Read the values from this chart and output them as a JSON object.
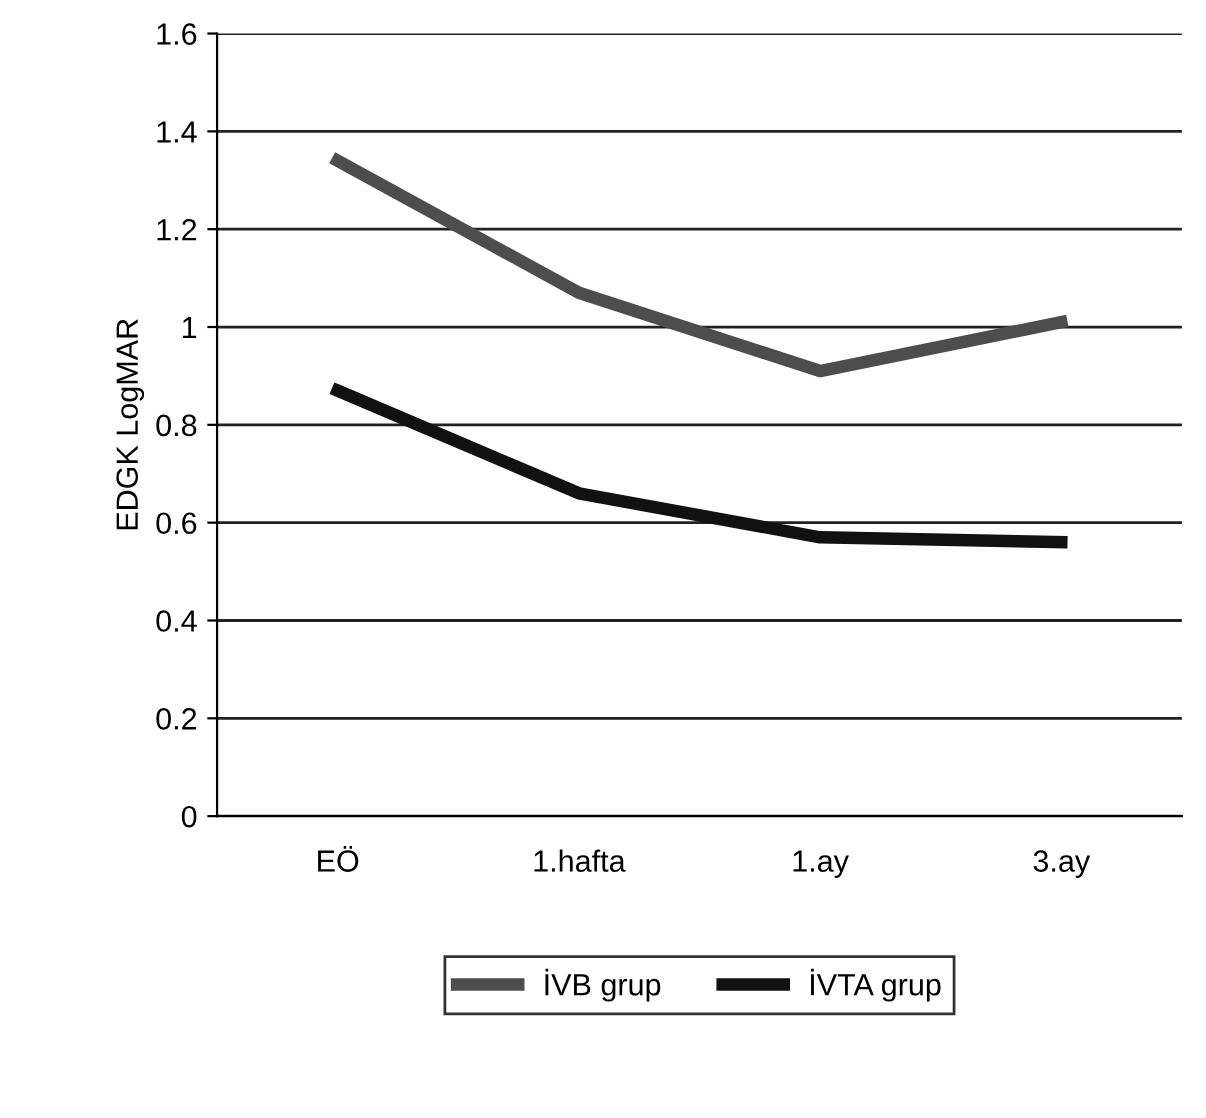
{
  "chart_data": {
    "type": "line",
    "ylabel": "EDGK LogMAR",
    "categories": [
      "EÖ",
      "1.hafta",
      "1.ay",
      "3.ay"
    ],
    "series": [
      {
        "name": "İVB grup",
        "color": "#4d4d4d",
        "values": [
          1.34,
          1.07,
          0.91,
          1.01
        ]
      },
      {
        "name": "İVTA grup",
        "color": "#111111",
        "values": [
          0.87,
          0.66,
          0.57,
          0.56
        ]
      }
    ],
    "ylim": [
      0,
      1.6
    ],
    "yticks": [
      0,
      0.2,
      0.4,
      0.6,
      0.8,
      1,
      1.2,
      1.4,
      1.6
    ],
    "grid": "y",
    "legend": "bottom",
    "marker": "none",
    "line_style": "solid"
  }
}
